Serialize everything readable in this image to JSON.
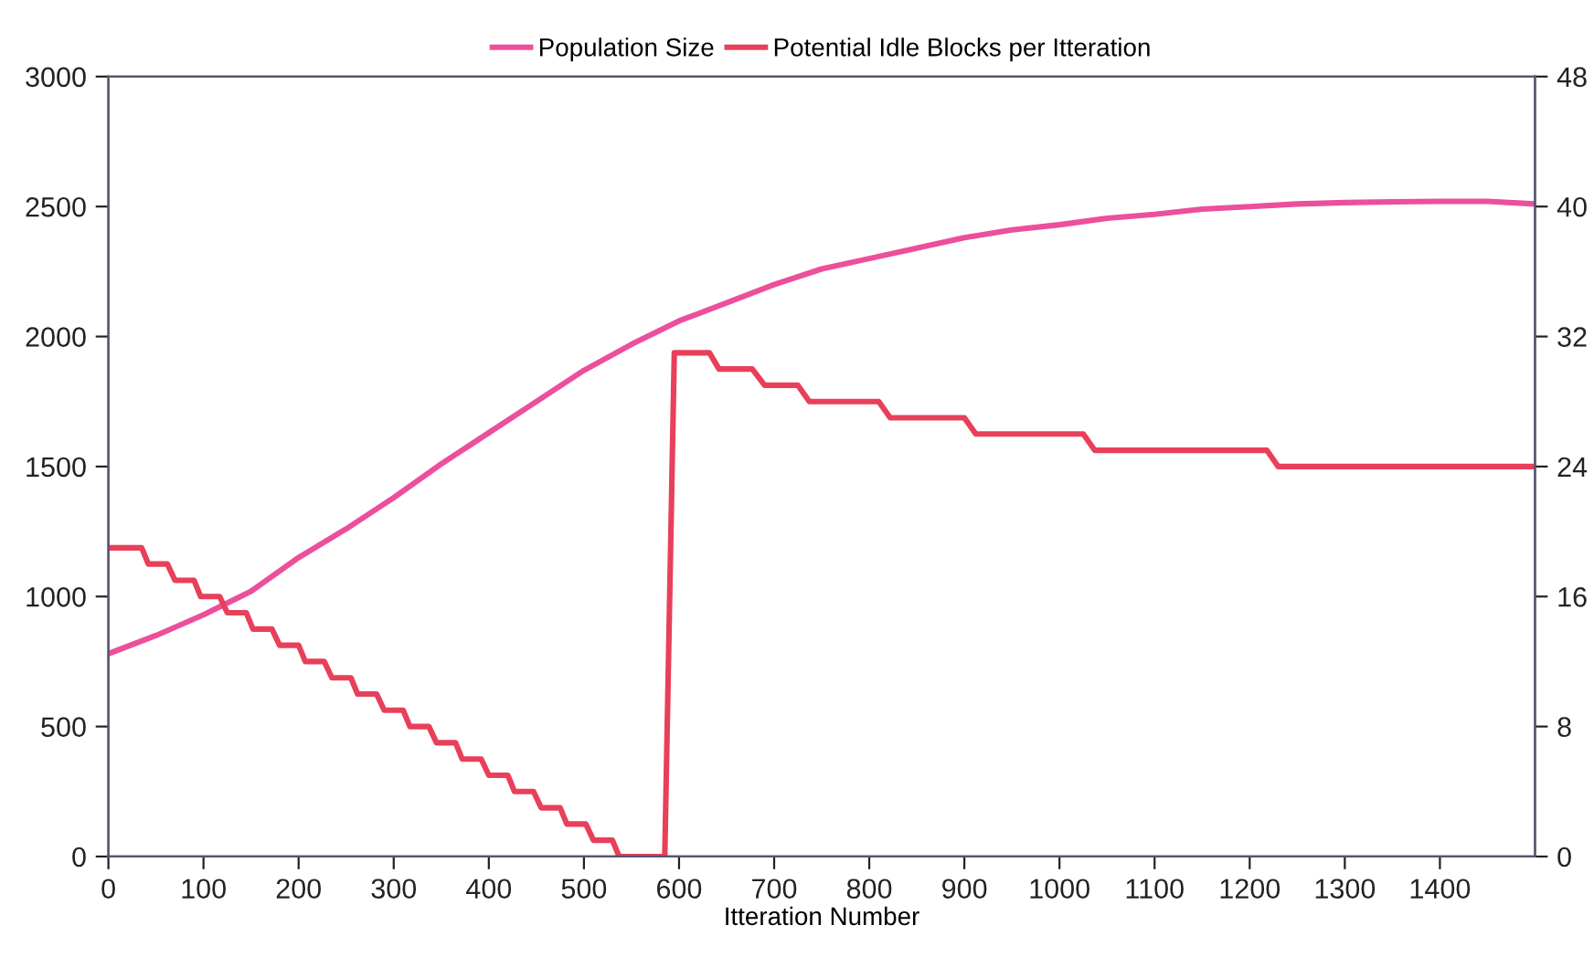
{
  "chart_data": {
    "type": "line",
    "xlabel": "Itteration Number",
    "legend": "top",
    "grid": false,
    "marker": "none",
    "line_style": "solid",
    "xlim": [
      0,
      1500
    ],
    "xticks": [
      0,
      100,
      200,
      300,
      400,
      500,
      600,
      700,
      800,
      900,
      1000,
      1100,
      1200,
      1300,
      1400
    ],
    "ylim": [
      0,
      3000
    ],
    "yticks": [
      0,
      500,
      1000,
      1500,
      2000,
      2500,
      3000
    ],
    "y2lim": [
      0,
      48
    ],
    "y2ticks": [
      0,
      8,
      16,
      24,
      32,
      40,
      48
    ],
    "series": [
      {
        "name": "Population Size",
        "color": "#ec4f9c",
        "x": [
          0,
          50,
          100,
          150,
          200,
          250,
          300,
          350,
          400,
          450,
          500,
          550,
          600,
          650,
          700,
          750,
          800,
          850,
          900,
          950,
          1000,
          1050,
          1100,
          1150,
          1200,
          1250,
          1300,
          1350,
          1400,
          1450,
          1500
        ],
        "values": [
          780,
          850,
          930,
          1020,
          1150,
          1260,
          1380,
          1510,
          1630,
          1750,
          1870,
          1970,
          2060,
          2130,
          2200,
          2260,
          2300,
          2340,
          2380,
          2410,
          2430,
          2455,
          2470,
          2490,
          2500,
          2510,
          2515,
          2518,
          2520,
          2520,
          2510
        ]
      },
      {
        "name": "Potential Idle Blocks per Itteration",
        "color": "#e8405a",
        "axis": "y2",
        "x": [
          0,
          35,
          42,
          62,
          70,
          90,
          97,
          117,
          125,
          145,
          152,
          172,
          180,
          200,
          207,
          227,
          235,
          255,
          262,
          282,
          290,
          310,
          317,
          337,
          345,
          365,
          372,
          392,
          400,
          420,
          427,
          447,
          455,
          475,
          482,
          502,
          510,
          530,
          537,
          585,
          595,
          632,
          642,
          677,
          690,
          725,
          737,
          810,
          822,
          900,
          912,
          1025,
          1037,
          1218,
          1230,
          1500
        ],
        "values": [
          19,
          19,
          18,
          18,
          17,
          17,
          16,
          16,
          15,
          15,
          14,
          14,
          13,
          13,
          12,
          12,
          11,
          11,
          10,
          10,
          9,
          9,
          8,
          8,
          7,
          7,
          6,
          6,
          5,
          5,
          4,
          4,
          3,
          3,
          2,
          2,
          1,
          1,
          0,
          0,
          31,
          31,
          30,
          30,
          29,
          29,
          28,
          28,
          27,
          27,
          26,
          26,
          25,
          25,
          24,
          24
        ]
      }
    ]
  }
}
